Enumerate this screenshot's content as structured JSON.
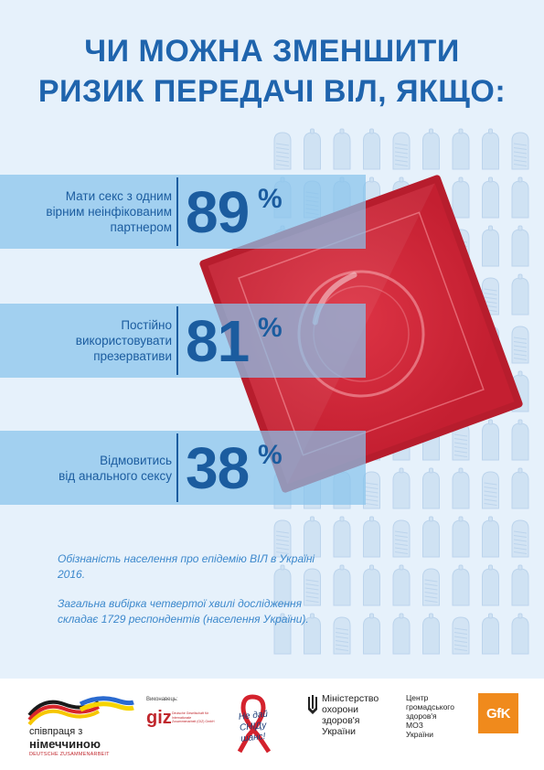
{
  "title": {
    "line1": "ЧИ МОЖНА ЗМЕНШИТИ",
    "line2": "РИЗИК ПЕРЕДАЧІ ВІЛ, ЯКЩО:"
  },
  "stats": [
    {
      "label_line1": "Мати секс з одним",
      "label_line2": "вірним неінфікованим",
      "label_line3": "партнером",
      "value": "89",
      "unit": "%"
    },
    {
      "label_line1": "Постійно",
      "label_line2": "використовувати",
      "label_line3": "презервативи",
      "value": "81",
      "unit": "%"
    },
    {
      "label_line1": "Відмовитись",
      "label_line2": "від анального сексу",
      "label_line3": "",
      "value": "38",
      "unit": "%"
    }
  ],
  "chart_data": {
    "type": "bar",
    "categories": [
      "Мати секс з одним вірним неінфікованим партнером",
      "Постійно використовувати презервативи",
      "Відмовитись від анального сексу"
    ],
    "values": [
      89,
      81,
      38
    ],
    "ylim": [
      0,
      100
    ]
  },
  "note": {
    "paragraph1": "Обізнаність населення про епідемію ВІЛ в Україні 2016.",
    "paragraph2": "Загальна вибірка четвертої хвилі дослідження складає 1729 респондентів (населення України)."
  },
  "partners": {
    "germany_line1": "співпраця з",
    "germany_line2": "німеччиною",
    "germany_line3": "DEUTSCHE ZUSAMMENARBEIT",
    "giz_caption": "Виконавець:",
    "giz_name": "giz",
    "giz_small": "Deutsche Gesellschaft für Internationale Zusammenarbeit (GIZ) GmbH",
    "aids_logo_text": "Не дай СНІДу шанс!",
    "ministry_line1": "Міністерство",
    "ministry_line2": "охорони",
    "ministry_line3": "здоров'я",
    "ministry_line4": "України",
    "phc_line1": "Центр",
    "phc_line2": "громадського",
    "phc_line3": "здоров'я",
    "phc_line4": "МОЗ",
    "phc_line5": "України",
    "gfk": "GfK"
  },
  "colors": {
    "background": "#e6f1fb",
    "title": "#1f64ad",
    "band": "#88c3ec",
    "stat_text": "#1b5c9f",
    "pack_red": "#d72a3a",
    "note": "#3c88cc",
    "gfk_orange": "#f08a1c"
  },
  "icons": [
    "condom-pattern",
    "condom-pack",
    "germany-flag-ribbon",
    "red-ribbon",
    "ukraine-trident"
  ]
}
